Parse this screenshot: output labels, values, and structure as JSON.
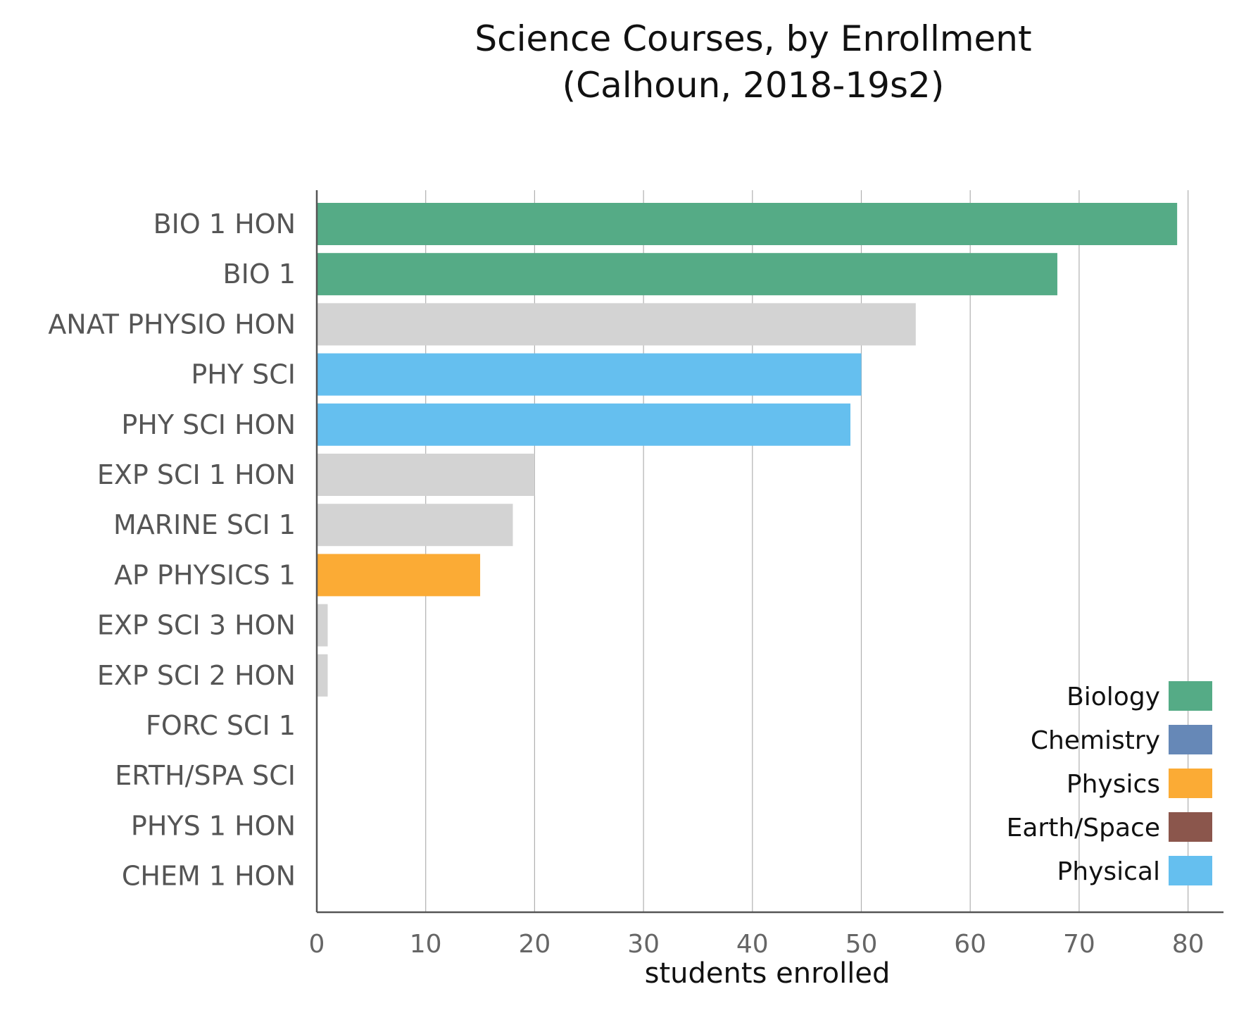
{
  "chart_data": {
    "type": "bar",
    "orientation": "horizontal",
    "title": "Science Courses, by Enrollment",
    "subtitle": "(Calhoun, 2018-19s2)",
    "xlabel": "students enrolled",
    "ylabel": "",
    "xlim": [
      0,
      82
    ],
    "xticks": [
      0,
      10,
      20,
      30,
      40,
      50,
      60,
      70,
      80
    ],
    "grid": "vertical",
    "legend_position": "bottom-right",
    "categories": [
      "BIO 1 HON",
      "BIO 1",
      "ANAT PHYSIO HON",
      "PHY SCI",
      "PHY SCI HON",
      "EXP SCI 1 HON",
      "MARINE SCI 1",
      "AP PHYSICS 1",
      "EXP SCI 3 HON",
      "EXP SCI 2 HON",
      "FORC SCI 1",
      "ERTH/SPA SCI",
      "PHYS 1 HON",
      "CHEM 1 HON"
    ],
    "values": [
      79,
      68,
      55,
      50,
      49,
      20,
      18,
      15,
      1,
      1,
      0,
      0,
      0,
      0
    ],
    "bar_groups": [
      "Biology",
      "Biology",
      "Other",
      "Physical",
      "Physical",
      "Other",
      "Other",
      "Physics",
      "Other",
      "Other",
      "Other",
      "Other",
      "Other",
      "Other"
    ],
    "legend": [
      {
        "name": "Biology",
        "color": "#55ab86"
      },
      {
        "name": "Chemistry",
        "color": "#6688b7"
      },
      {
        "name": "Physics",
        "color": "#fbab35"
      },
      {
        "name": "Earth/Space",
        "color": "#8b564c"
      },
      {
        "name": "Physical",
        "color": "#65bfef"
      }
    ],
    "colors": {
      "Biology": "#55ab86",
      "Chemistry": "#6688b7",
      "Physics": "#fbab35",
      "Earth/Space": "#8b564c",
      "Physical": "#65bfef",
      "Other": "#d3d3d3",
      "grid": "#b0b0b0",
      "axis": "#555555"
    }
  }
}
